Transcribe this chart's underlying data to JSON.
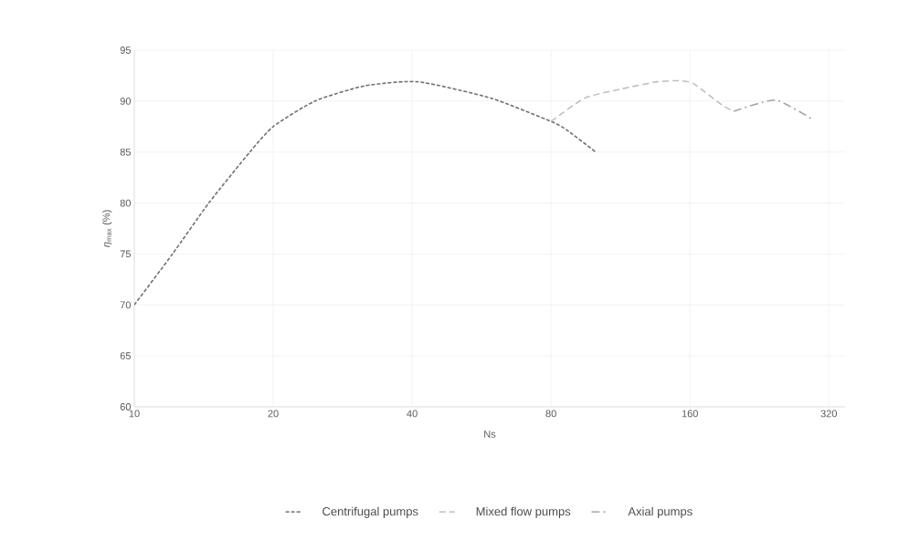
{
  "chart_data": {
    "type": "line",
    "xlabel": "Ns",
    "ylabel": "*η*$_{max}$  (%)",
    "log": "x",
    "xlim": [
      10,
      347
    ],
    "xticks": [
      10,
      20,
      40,
      80,
      160,
      320
    ],
    "ylim": [
      60,
      95
    ],
    "yticks": [
      60,
      65,
      70,
      75,
      80,
      85,
      90,
      95
    ],
    "grid": true,
    "legend": "bottom",
    "marker": "none",
    "series": [
      {
        "name": "Centrifugal pumps",
        "color": "#707070",
        "line_style": "dotted",
        "x": [
          10,
          12.1,
          14.5,
          17.8,
          20,
          24.6,
          31.6,
          41.2,
          59.2,
          80,
          86.3,
          100
        ],
        "values": [
          70,
          75,
          80,
          85,
          87.5,
          90,
          91.5,
          91.9,
          90.3,
          88,
          87.2,
          85
        ]
      },
      {
        "name": "Mixed flow pumps",
        "color": "#bfbfbf",
        "line_style": "dashed",
        "x": [
          80,
          94.7,
          113.7,
          136,
          152,
          163,
          188,
          199
        ],
        "values": [
          88,
          90.3,
          91.2,
          91.9,
          92,
          91.7,
          89.6,
          89
        ]
      },
      {
        "name": "Axial pumps",
        "color": "#a6a6a6",
        "line_style": "dashdot",
        "x": [
          199,
          245,
          295
        ],
        "values": [
          89,
          90.1,
          88.2
        ]
      }
    ]
  }
}
